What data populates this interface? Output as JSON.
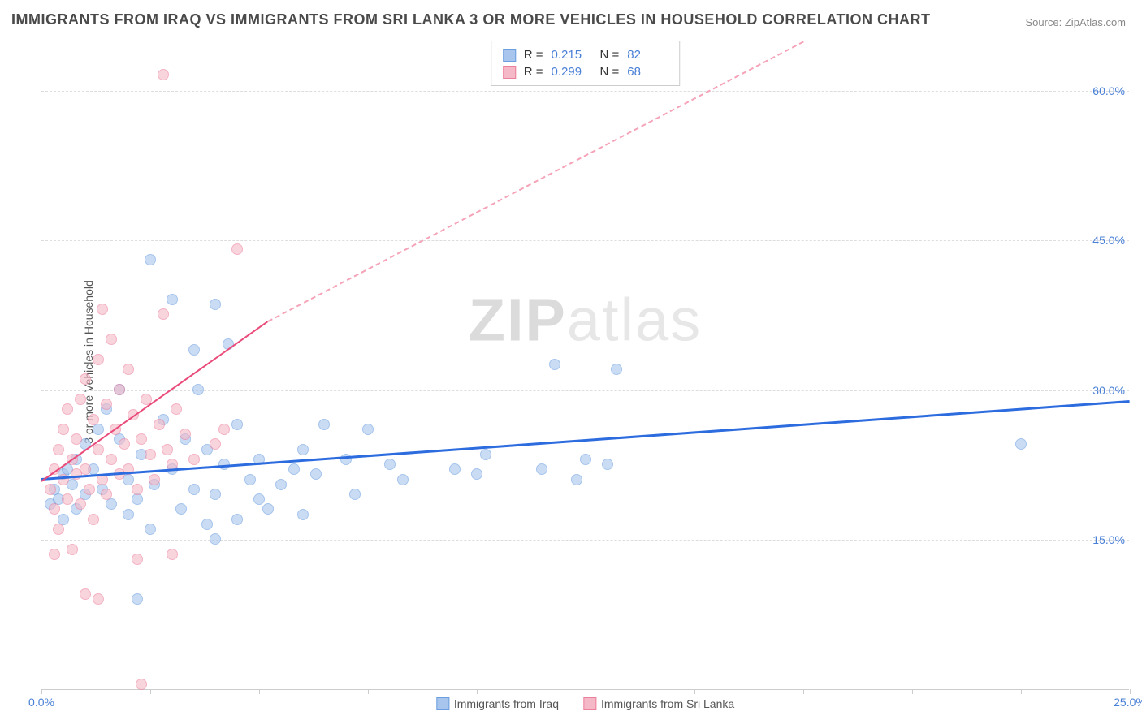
{
  "title": "IMMIGRANTS FROM IRAQ VS IMMIGRANTS FROM SRI LANKA 3 OR MORE VEHICLES IN HOUSEHOLD CORRELATION CHART",
  "source": "Source: ZipAtlas.com",
  "ylabel": "3 or more Vehicles in Household",
  "watermark_a": "ZIP",
  "watermark_b": "atlas",
  "chart": {
    "type": "scatter",
    "xlim": [
      0,
      25
    ],
    "ylim": [
      0,
      65
    ],
    "yticks": [
      15,
      30,
      45,
      60
    ],
    "ytick_labels": [
      "15.0%",
      "30.0%",
      "45.0%",
      "60.0%"
    ],
    "xtick_positions": [
      0,
      2.5,
      5,
      7.5,
      10,
      12.5,
      15,
      17.5,
      20,
      22.5,
      25
    ],
    "xticks_labeled": {
      "0": "0.0%",
      "25": "25.0%"
    },
    "grid_color": "#dddddd",
    "axis_color": "#cccccc",
    "background_color": "#ffffff",
    "point_radius": 7,
    "series": [
      {
        "name": "Immigrants from Iraq",
        "color_fill": "#a8c6ed",
        "color_stroke": "#6b9ee0",
        "fill_opacity": 0.6,
        "R": "0.215",
        "N": "82",
        "regression": {
          "x1": 0,
          "y1": 21.2,
          "x2": 25,
          "y2": 29.0,
          "color": "#2d6cdf",
          "width": 2.5,
          "dash": false
        },
        "points": [
          [
            0.2,
            18.5
          ],
          [
            0.3,
            20.0
          ],
          [
            0.4,
            19.0
          ],
          [
            0.5,
            21.5
          ],
          [
            0.5,
            17.0
          ],
          [
            0.6,
            22.0
          ],
          [
            0.7,
            20.5
          ],
          [
            0.8,
            23.0
          ],
          [
            0.8,
            18.0
          ],
          [
            1.0,
            24.5
          ],
          [
            1.0,
            19.5
          ],
          [
            1.2,
            22.0
          ],
          [
            1.3,
            26.0
          ],
          [
            1.4,
            20.0
          ],
          [
            1.5,
            28.0
          ],
          [
            1.6,
            18.5
          ],
          [
            1.8,
            25.0
          ],
          [
            1.8,
            30.0
          ],
          [
            2.0,
            21.0
          ],
          [
            2.0,
            17.5
          ],
          [
            2.2,
            19.0
          ],
          [
            2.3,
            23.5
          ],
          [
            2.5,
            43.0
          ],
          [
            2.5,
            16.0
          ],
          [
            2.6,
            20.5
          ],
          [
            2.8,
            27.0
          ],
          [
            2.2,
            9.0
          ],
          [
            3.0,
            22.0
          ],
          [
            3.0,
            39.0
          ],
          [
            3.2,
            18.0
          ],
          [
            3.3,
            25.0
          ],
          [
            3.5,
            34.0
          ],
          [
            3.5,
            20.0
          ],
          [
            3.6,
            30.0
          ],
          [
            3.8,
            16.5
          ],
          [
            3.8,
            24.0
          ],
          [
            4.0,
            38.5
          ],
          [
            4.0,
            19.5
          ],
          [
            4.2,
            22.5
          ],
          [
            4.3,
            34.5
          ],
          [
            4.5,
            17.0
          ],
          [
            4.5,
            26.5
          ],
          [
            4.8,
            21.0
          ],
          [
            4.0,
            15.0
          ],
          [
            5.0,
            23.0
          ],
          [
            5.0,
            19.0
          ],
          [
            5.2,
            18.0
          ],
          [
            5.5,
            20.5
          ],
          [
            5.8,
            22.0
          ],
          [
            6.0,
            17.5
          ],
          [
            6.0,
            24.0
          ],
          [
            6.3,
            21.5
          ],
          [
            6.5,
            26.5
          ],
          [
            7.0,
            23.0
          ],
          [
            7.2,
            19.5
          ],
          [
            7.5,
            26.0
          ],
          [
            8.0,
            22.5
          ],
          [
            8.3,
            21.0
          ],
          [
            9.5,
            22.0
          ],
          [
            10.0,
            21.5
          ],
          [
            10.2,
            23.5
          ],
          [
            11.5,
            22.0
          ],
          [
            11.8,
            32.5
          ],
          [
            12.3,
            21.0
          ],
          [
            12.5,
            23.0
          ],
          [
            13.0,
            22.5
          ],
          [
            13.2,
            32.0
          ],
          [
            22.5,
            24.5
          ]
        ]
      },
      {
        "name": "Immigrants from Sri Lanka",
        "color_fill": "#f5b8c7",
        "color_stroke": "#ec7f9c",
        "fill_opacity": 0.6,
        "R": "0.299",
        "N": "68",
        "regression": {
          "x1": 0,
          "y1": 21.0,
          "x2": 5.2,
          "y2": 37.0,
          "color": "#e94b7a",
          "width": 2,
          "dash": false
        },
        "regression_extend": {
          "x1": 5.2,
          "y1": 37.0,
          "x2": 17.5,
          "y2": 65.0,
          "color": "#f5a3b8",
          "dash": true
        },
        "points": [
          [
            0.2,
            20.0
          ],
          [
            0.3,
            22.0
          ],
          [
            0.3,
            18.0
          ],
          [
            0.4,
            24.0
          ],
          [
            0.4,
            16.0
          ],
          [
            0.5,
            21.0
          ],
          [
            0.5,
            26.0
          ],
          [
            0.6,
            19.0
          ],
          [
            0.6,
            28.0
          ],
          [
            0.7,
            23.0
          ],
          [
            0.7,
            14.0
          ],
          [
            0.8,
            25.0
          ],
          [
            0.8,
            21.5
          ],
          [
            0.9,
            29.0
          ],
          [
            0.9,
            18.5
          ],
          [
            0.3,
            13.5
          ],
          [
            1.0,
            22.0
          ],
          [
            1.0,
            31.0
          ],
          [
            1.1,
            20.0
          ],
          [
            1.2,
            27.0
          ],
          [
            1.2,
            17.0
          ],
          [
            1.3,
            24.0
          ],
          [
            1.3,
            33.0
          ],
          [
            1.4,
            21.0
          ],
          [
            1.4,
            38.0
          ],
          [
            1.5,
            28.5
          ],
          [
            1.5,
            19.5
          ],
          [
            1.6,
            23.0
          ],
          [
            1.6,
            35.0
          ],
          [
            1.7,
            26.0
          ],
          [
            1.8,
            21.5
          ],
          [
            1.8,
            30.0
          ],
          [
            1.9,
            24.5
          ],
          [
            1.0,
            9.5
          ],
          [
            1.3,
            9.0
          ],
          [
            2.0,
            22.0
          ],
          [
            2.0,
            32.0
          ],
          [
            2.1,
            27.5
          ],
          [
            2.2,
            20.0
          ],
          [
            2.3,
            25.0
          ],
          [
            2.4,
            29.0
          ],
          [
            2.5,
            23.5
          ],
          [
            2.6,
            21.0
          ],
          [
            2.7,
            26.5
          ],
          [
            2.2,
            13.0
          ],
          [
            2.8,
            37.5
          ],
          [
            2.9,
            24.0
          ],
          [
            2.3,
            0.5
          ],
          [
            3.0,
            22.5
          ],
          [
            3.1,
            28.0
          ],
          [
            3.3,
            25.5
          ],
          [
            3.5,
            23.0
          ],
          [
            3.0,
            13.5
          ],
          [
            4.0,
            24.5
          ],
          [
            4.2,
            26.0
          ],
          [
            4.5,
            44.0
          ],
          [
            2.8,
            61.5
          ]
        ]
      }
    ]
  },
  "stats_box": {
    "rows": [
      {
        "swatch_fill": "#a8c6ed",
        "swatch_stroke": "#6b9ee0",
        "R_label": "R =",
        "R_val": "0.215",
        "N_label": "N =",
        "N_val": "82"
      },
      {
        "swatch_fill": "#f5b8c7",
        "swatch_stroke": "#ec7f9c",
        "R_label": "R =",
        "R_val": "0.299",
        "N_label": "N =",
        "N_val": "68"
      }
    ]
  },
  "legend": [
    {
      "swatch_fill": "#a8c6ed",
      "swatch_stroke": "#6b9ee0",
      "label": "Immigrants from Iraq"
    },
    {
      "swatch_fill": "#f5b8c7",
      "swatch_stroke": "#ec7f9c",
      "label": "Immigrants from Sri Lanka"
    }
  ]
}
